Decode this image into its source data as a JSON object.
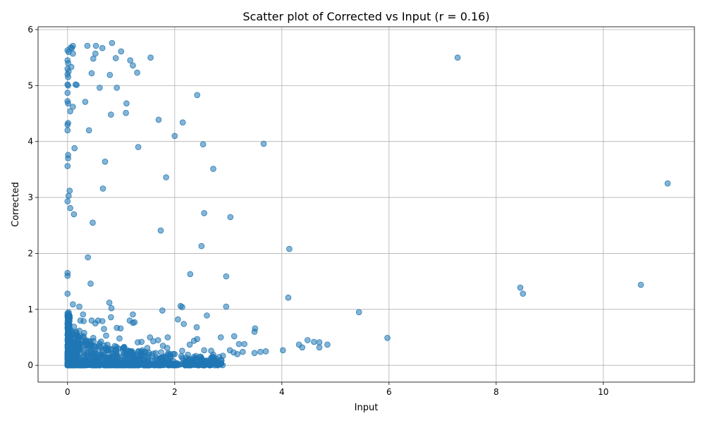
{
  "chart_data": {
    "type": "scatter",
    "title": "Scatter plot of Corrected vs Input (r = 0.16)",
    "xlabel": "Input",
    "ylabel": "Corrected",
    "xlim": [
      -0.55,
      11.7
    ],
    "ylim": [
      -0.3,
      6.05
    ],
    "xticks": [
      0,
      2,
      4,
      6,
      8,
      10
    ],
    "yticks": [
      0,
      1,
      2,
      3,
      4,
      5,
      6
    ],
    "grid": true,
    "marker_color": "#1f77b4",
    "marker_alpha": 0.55,
    "points": [
      [
        0.0,
        5.63
      ],
      [
        0.02,
        5.6
      ],
      [
        0.0,
        5.45
      ],
      [
        0.01,
        5.4
      ],
      [
        0.0,
        5.3
      ],
      [
        0.02,
        5.25
      ],
      [
        0.0,
        5.2
      ],
      [
        0.01,
        5.15
      ],
      [
        0.0,
        5.02
      ],
      [
        0.01,
        5.0
      ],
      [
        0.0,
        4.87
      ],
      [
        0.0,
        4.72
      ],
      [
        0.01,
        4.68
      ],
      [
        0.01,
        4.33
      ],
      [
        0.0,
        4.3
      ],
      [
        0.0,
        4.2
      ],
      [
        0.01,
        3.76
      ],
      [
        0.01,
        3.7
      ],
      [
        0.0,
        3.56
      ],
      [
        0.04,
        3.12
      ],
      [
        0.02,
        3.03
      ],
      [
        0.0,
        2.93
      ],
      [
        0.05,
        2.81
      ],
      [
        0.0,
        1.65
      ],
      [
        0.0,
        1.6
      ],
      [
        0.0,
        1.28
      ],
      [
        0.0,
        0.93
      ],
      [
        0.0,
        0.88
      ],
      [
        0.0,
        0.75
      ],
      [
        0.0,
        0.68
      ],
      [
        0.06,
        5.68
      ],
      [
        0.08,
        5.67
      ],
      [
        0.1,
        5.71
      ],
      [
        0.1,
        5.57
      ],
      [
        0.07,
        5.33
      ],
      [
        0.15,
        5.02
      ],
      [
        0.17,
        5.01
      ],
      [
        0.1,
        4.62
      ],
      [
        0.05,
        4.54
      ],
      [
        0.13,
        3.88
      ],
      [
        0.12,
        2.7
      ],
      [
        0.37,
        5.71
      ],
      [
        0.53,
        5.71
      ],
      [
        0.65,
        5.67
      ],
      [
        0.83,
        5.76
      ],
      [
        1.0,
        5.61
      ],
      [
        0.52,
        5.57
      ],
      [
        0.48,
        5.48
      ],
      [
        0.9,
        5.49
      ],
      [
        1.17,
        5.45
      ],
      [
        1.22,
        5.36
      ],
      [
        0.45,
        5.22
      ],
      [
        0.79,
        5.19
      ],
      [
        1.3,
        5.23
      ],
      [
        1.55,
        5.5
      ],
      [
        0.6,
        4.96
      ],
      [
        0.92,
        4.96
      ],
      [
        0.33,
        4.71
      ],
      [
        1.1,
        4.68
      ],
      [
        1.09,
        4.51
      ],
      [
        0.81,
        4.48
      ],
      [
        0.4,
        4.2
      ],
      [
        1.7,
        4.39
      ],
      [
        2.15,
        4.34
      ],
      [
        2.0,
        4.1
      ],
      [
        1.32,
        3.9
      ],
      [
        0.7,
        3.64
      ],
      [
        2.53,
        3.95
      ],
      [
        2.42,
        4.83
      ],
      [
        3.66,
        3.96
      ],
      [
        2.72,
        3.51
      ],
      [
        1.84,
        3.36
      ],
      [
        0.66,
        3.16
      ],
      [
        2.55,
        2.72
      ],
      [
        3.04,
        2.65
      ],
      [
        0.47,
        2.55
      ],
      [
        1.74,
        2.41
      ],
      [
        2.5,
        2.13
      ],
      [
        4.14,
        2.08
      ],
      [
        0.38,
        1.93
      ],
      [
        2.29,
        1.63
      ],
      [
        2.96,
        1.59
      ],
      [
        0.43,
        1.46
      ],
      [
        4.12,
        1.21
      ],
      [
        0.78,
        1.12
      ],
      [
        0.82,
        1.02
      ],
      [
        0.22,
        1.05
      ],
      [
        0.1,
        1.09
      ],
      [
        1.77,
        0.98
      ],
      [
        2.11,
        1.06
      ],
      [
        2.14,
        1.04
      ],
      [
        2.96,
        1.05
      ],
      [
        1.22,
        0.91
      ],
      [
        0.29,
        0.91
      ],
      [
        2.6,
        0.89
      ],
      [
        0.81,
        0.86
      ],
      [
        5.44,
        0.95
      ],
      [
        7.28,
        5.5
      ],
      [
        11.2,
        3.25
      ],
      [
        10.7,
        1.44
      ],
      [
        8.45,
        1.39
      ],
      [
        8.5,
        1.28
      ],
      [
        5.97,
        0.49
      ],
      [
        0.24,
        0.8
      ],
      [
        0.3,
        0.79
      ],
      [
        0.57,
        0.8
      ],
      [
        0.65,
        0.79
      ],
      [
        0.45,
        0.8
      ],
      [
        0.52,
        0.75
      ],
      [
        0.12,
        0.69
      ],
      [
        1.16,
        0.8
      ],
      [
        1.22,
        0.76
      ],
      [
        1.25,
        0.77
      ],
      [
        0.68,
        0.65
      ],
      [
        0.92,
        0.67
      ],
      [
        0.99,
        0.66
      ],
      [
        2.06,
        0.82
      ],
      [
        2.17,
        0.74
      ],
      [
        2.41,
        0.68
      ],
      [
        3.5,
        0.66
      ],
      [
        3.49,
        0.6
      ],
      [
        3.11,
        0.52
      ],
      [
        2.86,
        0.5
      ],
      [
        1.54,
        0.5
      ],
      [
        1.87,
        0.5
      ],
      [
        0.16,
        0.6
      ],
      [
        0.31,
        0.58
      ],
      [
        0.22,
        0.62
      ],
      [
        0.48,
        0.49
      ],
      [
        0.72,
        0.53
      ],
      [
        0.97,
        0.48
      ],
      [
        1.31,
        0.41
      ],
      [
        1.38,
        0.42
      ],
      [
        1.69,
        0.45
      ],
      [
        1.86,
        0.31
      ],
      [
        2.42,
        0.47
      ],
      [
        2.55,
        0.27
      ],
      [
        2.68,
        0.26
      ],
      [
        3.2,
        0.38
      ],
      [
        3.3,
        0.38
      ],
      [
        3.49,
        0.22
      ],
      [
        3.7,
        0.25
      ],
      [
        3.6,
        0.24
      ],
      [
        4.02,
        0.27
      ],
      [
        4.32,
        0.37
      ],
      [
        4.38,
        0.32
      ],
      [
        4.48,
        0.45
      ],
      [
        4.6,
        0.42
      ],
      [
        4.7,
        0.41
      ],
      [
        4.7,
        0.32
      ],
      [
        4.85,
        0.37
      ],
      [
        3.03,
        0.27
      ],
      [
        3.1,
        0.23
      ],
      [
        3.17,
        0.2
      ],
      [
        3.27,
        0.24
      ],
      [
        2.9,
        0.17
      ],
      [
        2.72,
        0.19
      ],
      [
        2.57,
        0.06
      ],
      [
        2.36,
        0.44
      ],
      [
        2.28,
        0.37
      ],
      [
        2.14,
        0.26
      ],
      [
        2.0,
        0.2
      ],
      [
        1.78,
        0.35
      ],
      [
        1.6,
        0.43
      ],
      [
        1.49,
        0.31
      ]
    ]
  }
}
